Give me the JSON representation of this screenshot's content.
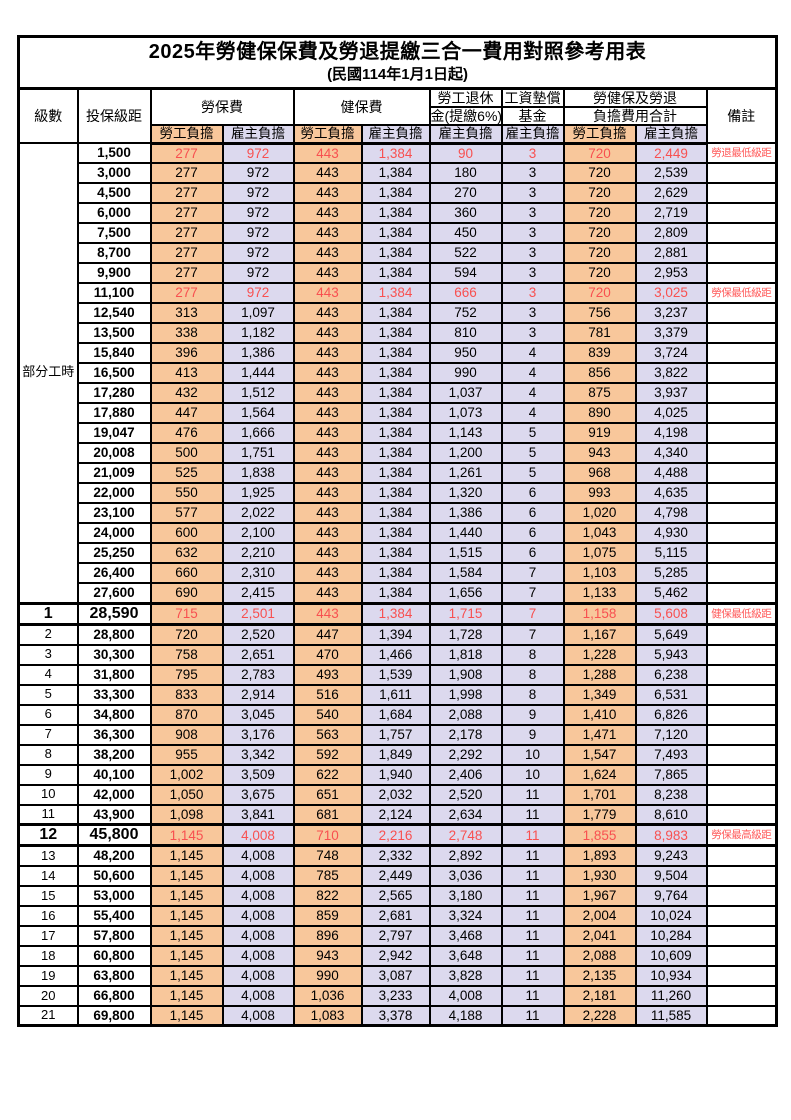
{
  "title": "2025年勞健保保費及勞退提繳三合一費用對照參考用表",
  "subtitle": "(民國114年1月1日起)",
  "header": {
    "level": "級數",
    "bracket": "投保級距",
    "labor_insurance": "勞保費",
    "health_insurance": "健保費",
    "pension_line1": "勞工退休",
    "pension_line2": "金(提繳6%)",
    "wage_fund_line1": "工資墊償",
    "wage_fund_line2": "基金",
    "total_line1": "勞健保及勞退",
    "total_line2": "負擔費用合計",
    "remark": "備註",
    "employee_burden": "勞工負擔",
    "employer_burden": "雇主負擔"
  },
  "group_label": "部分工時",
  "group_rowspan": 23,
  "colors": {
    "employee_column_bg": "#F8C79B",
    "employer_column_bg": "#DCD9EE",
    "highlight_red": "#F85050",
    "remark_red": "#FF5A5A",
    "border": "#000000"
  },
  "rows": [
    {
      "level": "",
      "bracket": "1,500",
      "li_emp": "277",
      "li_er": "972",
      "hi_emp": "443",
      "hi_er": "1,384",
      "pension": "90",
      "fund": "3",
      "sum_emp": "720",
      "sum_er": "2,449",
      "remark": "勞退最低級距",
      "red": true,
      "big": false,
      "thick": false
    },
    {
      "level": "",
      "bracket": "3,000",
      "li_emp": "277",
      "li_er": "972",
      "hi_emp": "443",
      "hi_er": "1,384",
      "pension": "180",
      "fund": "3",
      "sum_emp": "720",
      "sum_er": "2,539",
      "remark": "",
      "red": false,
      "big": false,
      "thick": false
    },
    {
      "level": "",
      "bracket": "4,500",
      "li_emp": "277",
      "li_er": "972",
      "hi_emp": "443",
      "hi_er": "1,384",
      "pension": "270",
      "fund": "3",
      "sum_emp": "720",
      "sum_er": "2,629",
      "remark": "",
      "red": false,
      "big": false,
      "thick": false
    },
    {
      "level": "",
      "bracket": "6,000",
      "li_emp": "277",
      "li_er": "972",
      "hi_emp": "443",
      "hi_er": "1,384",
      "pension": "360",
      "fund": "3",
      "sum_emp": "720",
      "sum_er": "2,719",
      "remark": "",
      "red": false,
      "big": false,
      "thick": false
    },
    {
      "level": "",
      "bracket": "7,500",
      "li_emp": "277",
      "li_er": "972",
      "hi_emp": "443",
      "hi_er": "1,384",
      "pension": "450",
      "fund": "3",
      "sum_emp": "720",
      "sum_er": "2,809",
      "remark": "",
      "red": false,
      "big": false,
      "thick": false
    },
    {
      "level": "",
      "bracket": "8,700",
      "li_emp": "277",
      "li_er": "972",
      "hi_emp": "443",
      "hi_er": "1,384",
      "pension": "522",
      "fund": "3",
      "sum_emp": "720",
      "sum_er": "2,881",
      "remark": "",
      "red": false,
      "big": false,
      "thick": false
    },
    {
      "level": "",
      "bracket": "9,900",
      "li_emp": "277",
      "li_er": "972",
      "hi_emp": "443",
      "hi_er": "1,384",
      "pension": "594",
      "fund": "3",
      "sum_emp": "720",
      "sum_er": "2,953",
      "remark": "",
      "red": false,
      "big": false,
      "thick": false
    },
    {
      "level": "",
      "bracket": "11,100",
      "li_emp": "277",
      "li_er": "972",
      "hi_emp": "443",
      "hi_er": "1,384",
      "pension": "666",
      "fund": "3",
      "sum_emp": "720",
      "sum_er": "3,025",
      "remark": "勞保最低級距",
      "red": true,
      "big": false,
      "thick": false
    },
    {
      "level": "",
      "bracket": "12,540",
      "li_emp": "313",
      "li_er": "1,097",
      "hi_emp": "443",
      "hi_er": "1,384",
      "pension": "752",
      "fund": "3",
      "sum_emp": "756",
      "sum_er": "3,237",
      "remark": "",
      "red": false,
      "big": false,
      "thick": false
    },
    {
      "level": "",
      "bracket": "13,500",
      "li_emp": "338",
      "li_er": "1,182",
      "hi_emp": "443",
      "hi_er": "1,384",
      "pension": "810",
      "fund": "3",
      "sum_emp": "781",
      "sum_er": "3,379",
      "remark": "",
      "red": false,
      "big": false,
      "thick": false
    },
    {
      "level": "",
      "bracket": "15,840",
      "li_emp": "396",
      "li_er": "1,386",
      "hi_emp": "443",
      "hi_er": "1,384",
      "pension": "950",
      "fund": "4",
      "sum_emp": "839",
      "sum_er": "3,724",
      "remark": "",
      "red": false,
      "big": false,
      "thick": false
    },
    {
      "level": "",
      "bracket": "16,500",
      "li_emp": "413",
      "li_er": "1,444",
      "hi_emp": "443",
      "hi_er": "1,384",
      "pension": "990",
      "fund": "4",
      "sum_emp": "856",
      "sum_er": "3,822",
      "remark": "",
      "red": false,
      "big": false,
      "thick": false
    },
    {
      "level": "",
      "bracket": "17,280",
      "li_emp": "432",
      "li_er": "1,512",
      "hi_emp": "443",
      "hi_er": "1,384",
      "pension": "1,037",
      "fund": "4",
      "sum_emp": "875",
      "sum_er": "3,937",
      "remark": "",
      "red": false,
      "big": false,
      "thick": false
    },
    {
      "level": "",
      "bracket": "17,880",
      "li_emp": "447",
      "li_er": "1,564",
      "hi_emp": "443",
      "hi_er": "1,384",
      "pension": "1,073",
      "fund": "4",
      "sum_emp": "890",
      "sum_er": "4,025",
      "remark": "",
      "red": false,
      "big": false,
      "thick": false
    },
    {
      "level": "",
      "bracket": "19,047",
      "li_emp": "476",
      "li_er": "1,666",
      "hi_emp": "443",
      "hi_er": "1,384",
      "pension": "1,143",
      "fund": "5",
      "sum_emp": "919",
      "sum_er": "4,198",
      "remark": "",
      "red": false,
      "big": false,
      "thick": false
    },
    {
      "level": "",
      "bracket": "20,008",
      "li_emp": "500",
      "li_er": "1,751",
      "hi_emp": "443",
      "hi_er": "1,384",
      "pension": "1,200",
      "fund": "5",
      "sum_emp": "943",
      "sum_er": "4,340",
      "remark": "",
      "red": false,
      "big": false,
      "thick": false
    },
    {
      "level": "",
      "bracket": "21,009",
      "li_emp": "525",
      "li_er": "1,838",
      "hi_emp": "443",
      "hi_er": "1,384",
      "pension": "1,261",
      "fund": "5",
      "sum_emp": "968",
      "sum_er": "4,488",
      "remark": "",
      "red": false,
      "big": false,
      "thick": false
    },
    {
      "level": "",
      "bracket": "22,000",
      "li_emp": "550",
      "li_er": "1,925",
      "hi_emp": "443",
      "hi_er": "1,384",
      "pension": "1,320",
      "fund": "6",
      "sum_emp": "993",
      "sum_er": "4,635",
      "remark": "",
      "red": false,
      "big": false,
      "thick": false
    },
    {
      "level": "",
      "bracket": "23,100",
      "li_emp": "577",
      "li_er": "2,022",
      "hi_emp": "443",
      "hi_er": "1,384",
      "pension": "1,386",
      "fund": "6",
      "sum_emp": "1,020",
      "sum_er": "4,798",
      "remark": "",
      "red": false,
      "big": false,
      "thick": false
    },
    {
      "level": "",
      "bracket": "24,000",
      "li_emp": "600",
      "li_er": "2,100",
      "hi_emp": "443",
      "hi_er": "1,384",
      "pension": "1,440",
      "fund": "6",
      "sum_emp": "1,043",
      "sum_er": "4,930",
      "remark": "",
      "red": false,
      "big": false,
      "thick": false
    },
    {
      "level": "",
      "bracket": "25,250",
      "li_emp": "632",
      "li_er": "2,210",
      "hi_emp": "443",
      "hi_er": "1,384",
      "pension": "1,515",
      "fund": "6",
      "sum_emp": "1,075",
      "sum_er": "5,115",
      "remark": "",
      "red": false,
      "big": false,
      "thick": false
    },
    {
      "level": "",
      "bracket": "26,400",
      "li_emp": "660",
      "li_er": "2,310",
      "hi_emp": "443",
      "hi_er": "1,384",
      "pension": "1,584",
      "fund": "7",
      "sum_emp": "1,103",
      "sum_er": "5,285",
      "remark": "",
      "red": false,
      "big": false,
      "thick": false
    },
    {
      "level": "",
      "bracket": "27,600",
      "li_emp": "690",
      "li_er": "2,415",
      "hi_emp": "443",
      "hi_er": "1,384",
      "pension": "1,656",
      "fund": "7",
      "sum_emp": "1,133",
      "sum_er": "5,462",
      "remark": "",
      "red": false,
      "big": false,
      "thick": false
    },
    {
      "level": "1",
      "bracket": "28,590",
      "li_emp": "715",
      "li_er": "2,501",
      "hi_emp": "443",
      "hi_er": "1,384",
      "pension": "1,715",
      "fund": "7",
      "sum_emp": "1,158",
      "sum_er": "5,608",
      "remark": "健保最低級距",
      "red": true,
      "big": true,
      "thick": true
    },
    {
      "level": "2",
      "bracket": "28,800",
      "li_emp": "720",
      "li_er": "2,520",
      "hi_emp": "447",
      "hi_er": "1,394",
      "pension": "1,728",
      "fund": "7",
      "sum_emp": "1,167",
      "sum_er": "5,649",
      "remark": "",
      "red": false,
      "big": false,
      "thick": false
    },
    {
      "level": "3",
      "bracket": "30,300",
      "li_emp": "758",
      "li_er": "2,651",
      "hi_emp": "470",
      "hi_er": "1,466",
      "pension": "1,818",
      "fund": "8",
      "sum_emp": "1,228",
      "sum_er": "5,943",
      "remark": "",
      "red": false,
      "big": false,
      "thick": false
    },
    {
      "level": "4",
      "bracket": "31,800",
      "li_emp": "795",
      "li_er": "2,783",
      "hi_emp": "493",
      "hi_er": "1,539",
      "pension": "1,908",
      "fund": "8",
      "sum_emp": "1,288",
      "sum_er": "6,238",
      "remark": "",
      "red": false,
      "big": false,
      "thick": false
    },
    {
      "level": "5",
      "bracket": "33,300",
      "li_emp": "833",
      "li_er": "2,914",
      "hi_emp": "516",
      "hi_er": "1,611",
      "pension": "1,998",
      "fund": "8",
      "sum_emp": "1,349",
      "sum_er": "6,531",
      "remark": "",
      "red": false,
      "big": false,
      "thick": false
    },
    {
      "level": "6",
      "bracket": "34,800",
      "li_emp": "870",
      "li_er": "3,045",
      "hi_emp": "540",
      "hi_er": "1,684",
      "pension": "2,088",
      "fund": "9",
      "sum_emp": "1,410",
      "sum_er": "6,826",
      "remark": "",
      "red": false,
      "big": false,
      "thick": false
    },
    {
      "level": "7",
      "bracket": "36,300",
      "li_emp": "908",
      "li_er": "3,176",
      "hi_emp": "563",
      "hi_er": "1,757",
      "pension": "2,178",
      "fund": "9",
      "sum_emp": "1,471",
      "sum_er": "7,120",
      "remark": "",
      "red": false,
      "big": false,
      "thick": false
    },
    {
      "level": "8",
      "bracket": "38,200",
      "li_emp": "955",
      "li_er": "3,342",
      "hi_emp": "592",
      "hi_er": "1,849",
      "pension": "2,292",
      "fund": "10",
      "sum_emp": "1,547",
      "sum_er": "7,493",
      "remark": "",
      "red": false,
      "big": false,
      "thick": false
    },
    {
      "level": "9",
      "bracket": "40,100",
      "li_emp": "1,002",
      "li_er": "3,509",
      "hi_emp": "622",
      "hi_er": "1,940",
      "pension": "2,406",
      "fund": "10",
      "sum_emp": "1,624",
      "sum_er": "7,865",
      "remark": "",
      "red": false,
      "big": false,
      "thick": false
    },
    {
      "level": "10",
      "bracket": "42,000",
      "li_emp": "1,050",
      "li_er": "3,675",
      "hi_emp": "651",
      "hi_er": "2,032",
      "pension": "2,520",
      "fund": "11",
      "sum_emp": "1,701",
      "sum_er": "8,238",
      "remark": "",
      "red": false,
      "big": false,
      "thick": false
    },
    {
      "level": "11",
      "bracket": "43,900",
      "li_emp": "1,098",
      "li_er": "3,841",
      "hi_emp": "681",
      "hi_er": "2,124",
      "pension": "2,634",
      "fund": "11",
      "sum_emp": "1,779",
      "sum_er": "8,610",
      "remark": "",
      "red": false,
      "big": false,
      "thick": false
    },
    {
      "level": "12",
      "bracket": "45,800",
      "li_emp": "1,145",
      "li_er": "4,008",
      "hi_emp": "710",
      "hi_er": "2,216",
      "pension": "2,748",
      "fund": "11",
      "sum_emp": "1,855",
      "sum_er": "8,983",
      "remark": "勞保最高級距",
      "red": true,
      "big": true,
      "thick": true
    },
    {
      "level": "13",
      "bracket": "48,200",
      "li_emp": "1,145",
      "li_er": "4,008",
      "hi_emp": "748",
      "hi_er": "2,332",
      "pension": "2,892",
      "fund": "11",
      "sum_emp": "1,893",
      "sum_er": "9,243",
      "remark": "",
      "red": false,
      "big": false,
      "thick": false
    },
    {
      "level": "14",
      "bracket": "50,600",
      "li_emp": "1,145",
      "li_er": "4,008",
      "hi_emp": "785",
      "hi_er": "2,449",
      "pension": "3,036",
      "fund": "11",
      "sum_emp": "1,930",
      "sum_er": "9,504",
      "remark": "",
      "red": false,
      "big": false,
      "thick": false
    },
    {
      "level": "15",
      "bracket": "53,000",
      "li_emp": "1,145",
      "li_er": "4,008",
      "hi_emp": "822",
      "hi_er": "2,565",
      "pension": "3,180",
      "fund": "11",
      "sum_emp": "1,967",
      "sum_er": "9,764",
      "remark": "",
      "red": false,
      "big": false,
      "thick": false
    },
    {
      "level": "16",
      "bracket": "55,400",
      "li_emp": "1,145",
      "li_er": "4,008",
      "hi_emp": "859",
      "hi_er": "2,681",
      "pension": "3,324",
      "fund": "11",
      "sum_emp": "2,004",
      "sum_er": "10,024",
      "remark": "",
      "red": false,
      "big": false,
      "thick": false
    },
    {
      "level": "17",
      "bracket": "57,800",
      "li_emp": "1,145",
      "li_er": "4,008",
      "hi_emp": "896",
      "hi_er": "2,797",
      "pension": "3,468",
      "fund": "11",
      "sum_emp": "2,041",
      "sum_er": "10,284",
      "remark": "",
      "red": false,
      "big": false,
      "thick": false
    },
    {
      "level": "18",
      "bracket": "60,800",
      "li_emp": "1,145",
      "li_er": "4,008",
      "hi_emp": "943",
      "hi_er": "2,942",
      "pension": "3,648",
      "fund": "11",
      "sum_emp": "2,088",
      "sum_er": "10,609",
      "remark": "",
      "red": false,
      "big": false,
      "thick": false
    },
    {
      "level": "19",
      "bracket": "63,800",
      "li_emp": "1,145",
      "li_er": "4,008",
      "hi_emp": "990",
      "hi_er": "3,087",
      "pension": "3,828",
      "fund": "11",
      "sum_emp": "2,135",
      "sum_er": "10,934",
      "remark": "",
      "red": false,
      "big": false,
      "thick": false
    },
    {
      "level": "20",
      "bracket": "66,800",
      "li_emp": "1,145",
      "li_er": "4,008",
      "hi_emp": "1,036",
      "hi_er": "3,233",
      "pension": "4,008",
      "fund": "11",
      "sum_emp": "2,181",
      "sum_er": "11,260",
      "remark": "",
      "red": false,
      "big": false,
      "thick": false
    },
    {
      "level": "21",
      "bracket": "69,800",
      "li_emp": "1,145",
      "li_er": "4,008",
      "hi_emp": "1,083",
      "hi_er": "3,378",
      "pension": "4,188",
      "fund": "11",
      "sum_emp": "2,228",
      "sum_er": "11,585",
      "remark": "",
      "red": false,
      "big": false,
      "thick": false
    }
  ]
}
